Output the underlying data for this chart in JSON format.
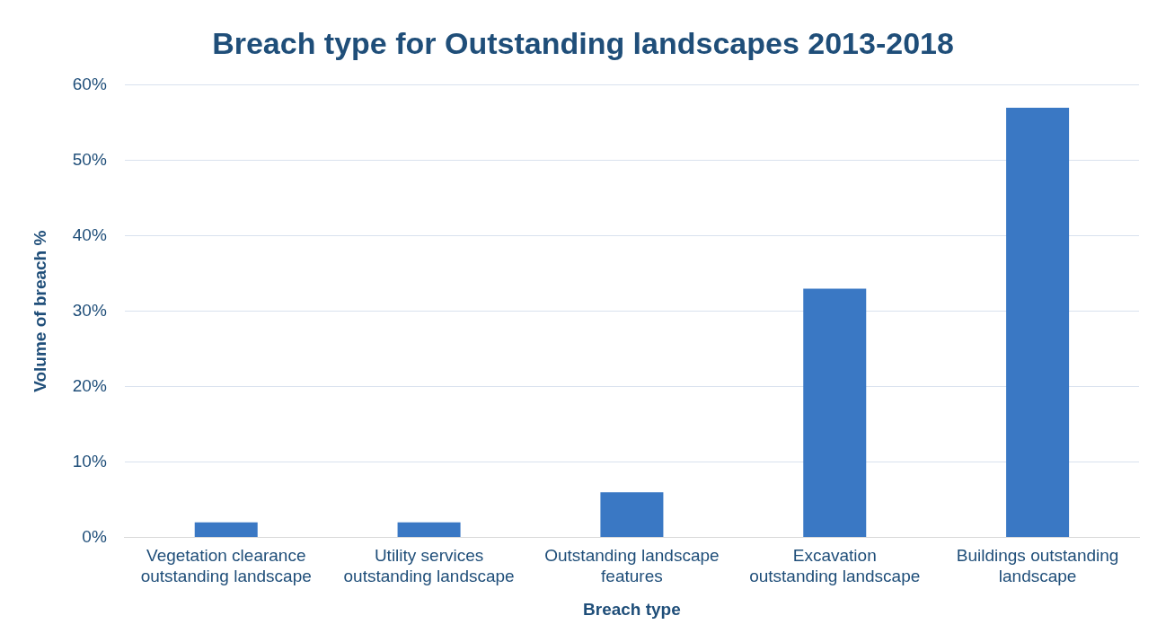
{
  "chart_data": {
    "type": "bar",
    "title": "Breach type for Outstanding landscapes 2013-2018",
    "xlabel": "Breach type",
    "ylabel": "Volume of breach %",
    "categories": [
      "Vegetation clearance outstanding landscape",
      "Utility services outstanding landscape",
      "Outstanding landscape features",
      "Excavation outstanding landscape",
      "Buildings outstanding landscape"
    ],
    "values": [
      2,
      2,
      6,
      33,
      57
    ],
    "color": "#3a78c4",
    "ylim": [
      0,
      60
    ],
    "yticks": [
      {
        "value": 0,
        "label": "0%"
      },
      {
        "value": 10,
        "label": "10%"
      },
      {
        "value": 20,
        "label": "20%"
      },
      {
        "value": 30,
        "label": "30%"
      },
      {
        "value": 40,
        "label": "40%"
      },
      {
        "value": 50,
        "label": "50%"
      },
      {
        "value": 60,
        "label": "60%"
      }
    ],
    "grid": "y",
    "legend": false
  }
}
